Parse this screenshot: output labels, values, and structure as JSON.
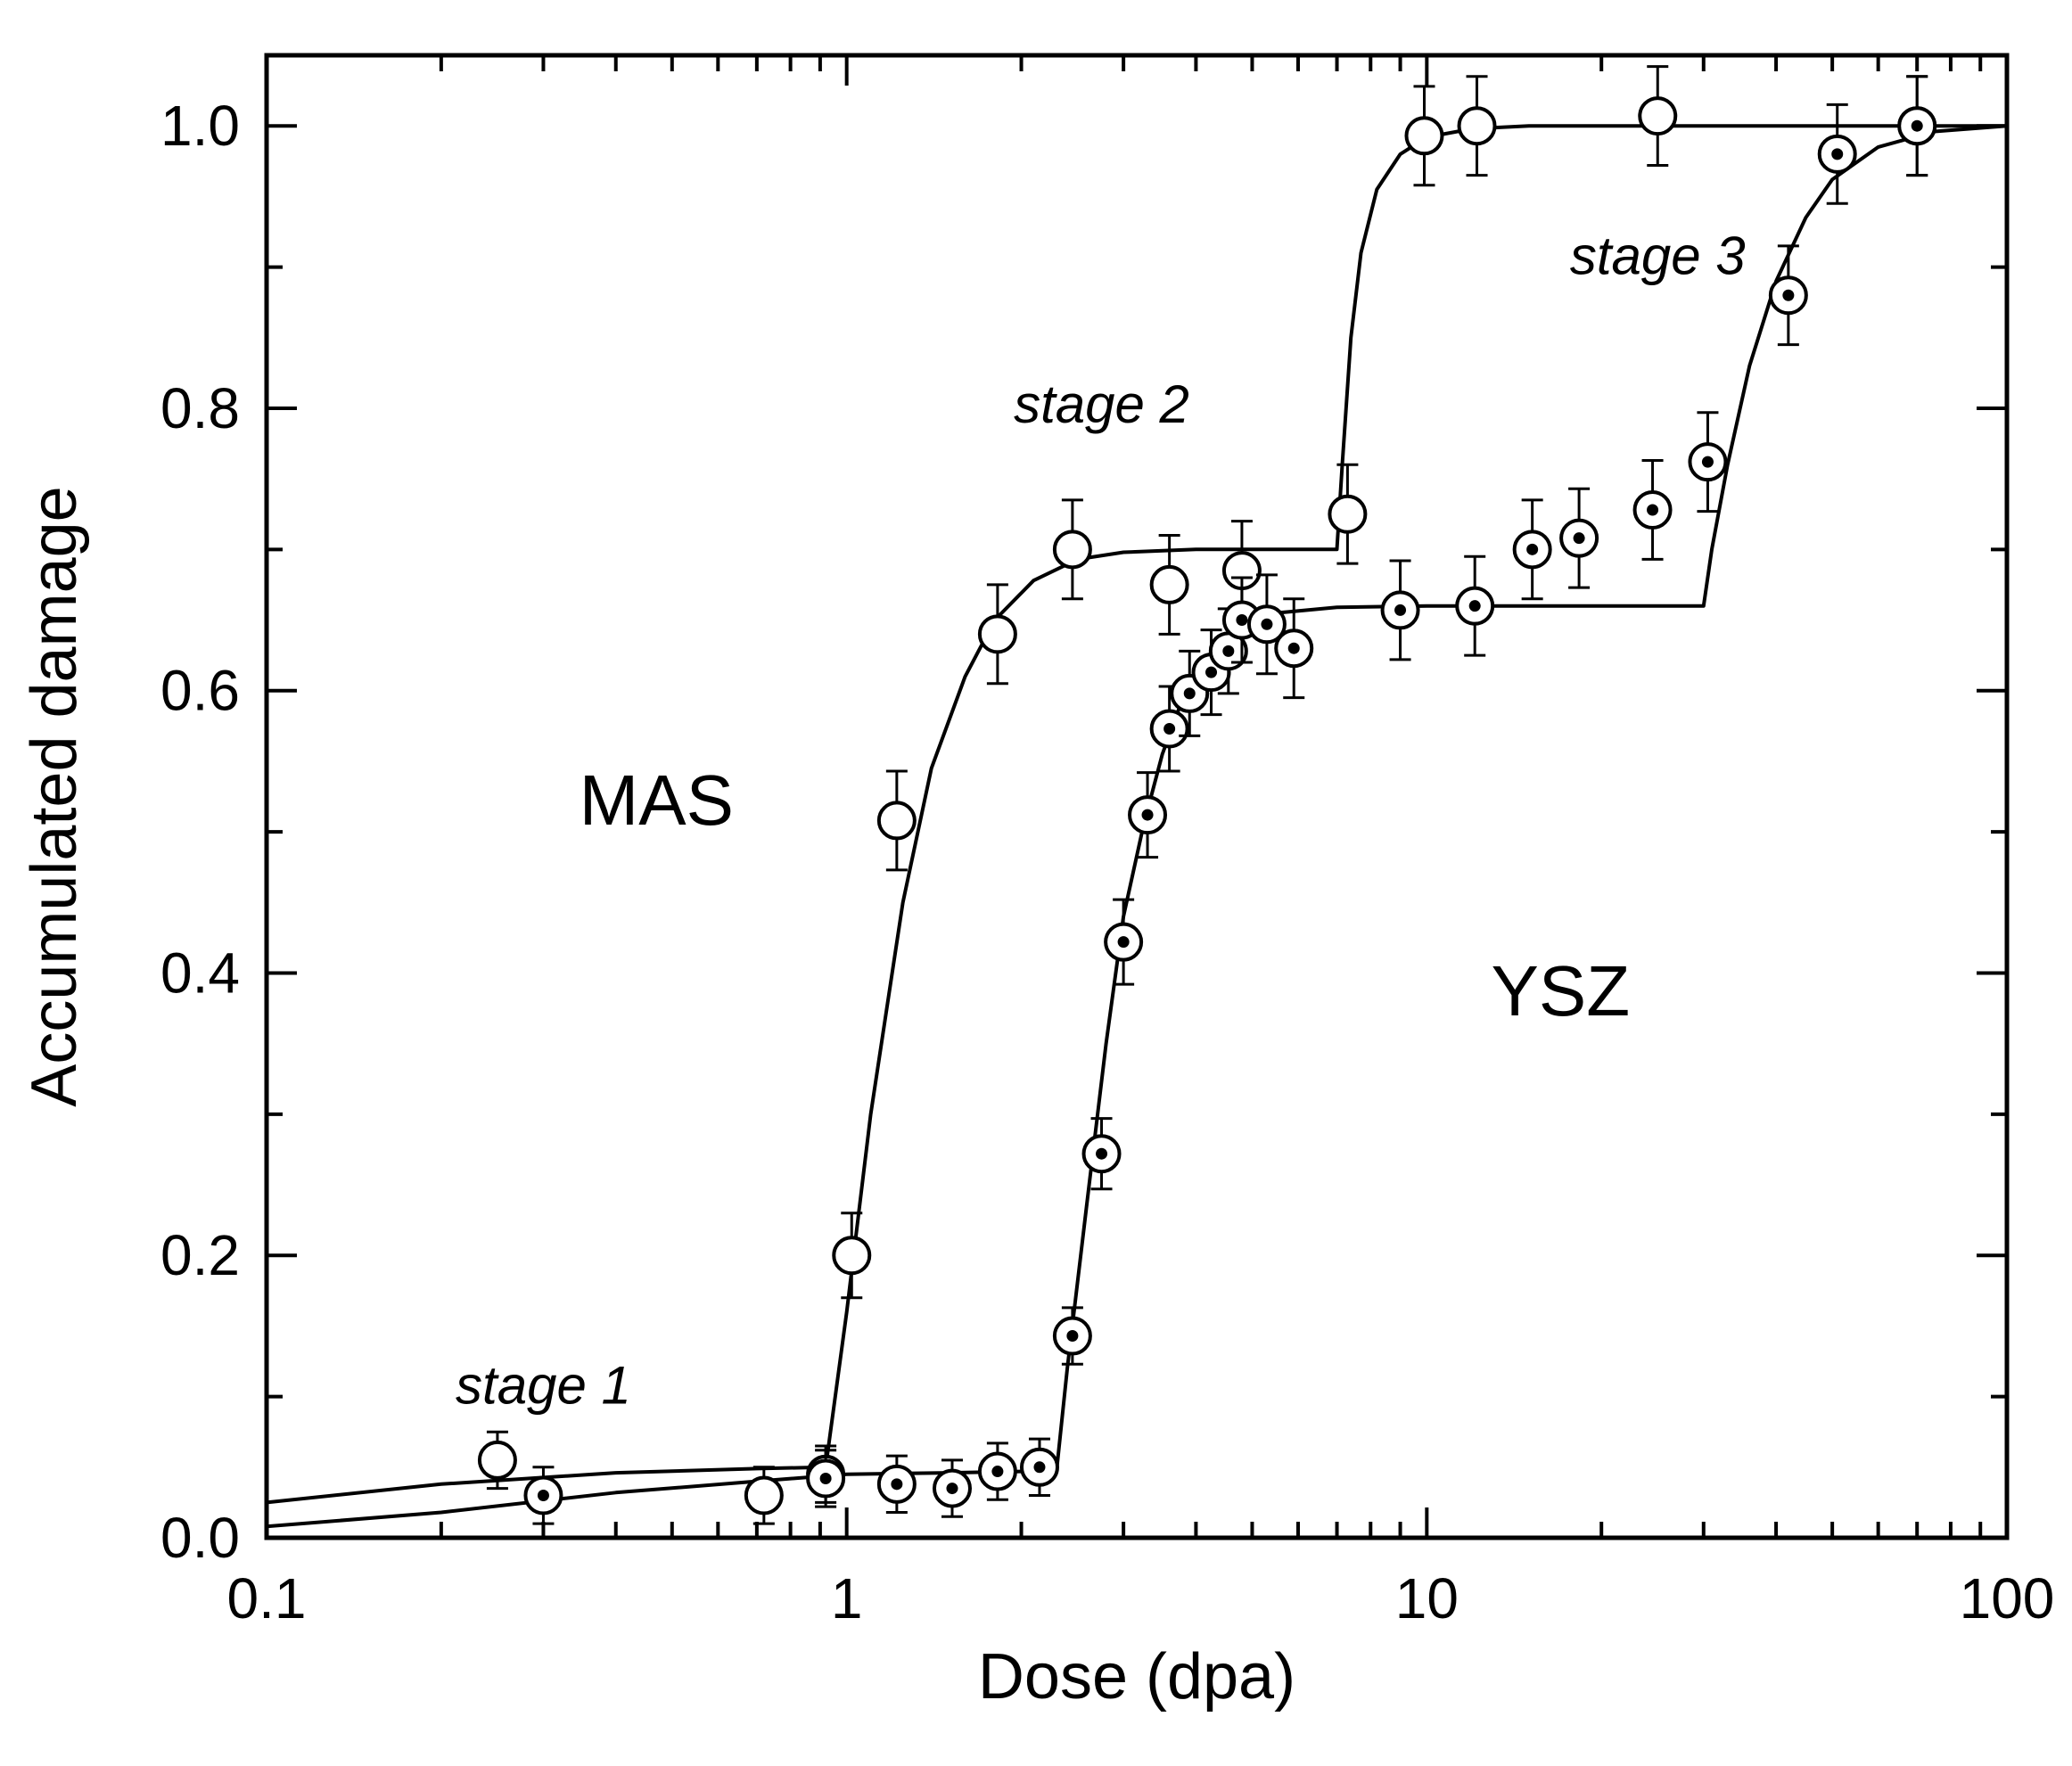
{
  "chart_data": {
    "type": "scatter",
    "xscale": "log",
    "xlim": [
      0.1,
      100
    ],
    "ylim": [
      0.0,
      1.05
    ],
    "xlabel": "Dose (dpa)",
    "ylabel": "Accumulated damage",
    "x_tick_labels": [
      "0.1",
      "1",
      "10",
      "100"
    ],
    "x_tick_values": [
      0.1,
      1,
      10,
      100
    ],
    "y_tick_labels": [
      "0.0",
      "0.2",
      "0.4",
      "0.6",
      "0.8",
      "1.0"
    ],
    "y_tick_values": [
      0.0,
      0.2,
      0.4,
      0.6,
      0.8,
      1.0
    ],
    "series_labels": {
      "mas": "MAS",
      "ysz": "YSZ"
    },
    "stage_labels": [
      "stage 1",
      "stage 2",
      "stage 3"
    ],
    "series": [
      {
        "name": "MAS",
        "marker": "open-circle",
        "x": [
          0.25,
          0.72,
          0.92,
          1.02,
          1.22,
          1.82,
          2.45,
          3.6,
          4.8,
          7.3,
          9.9,
          12.2,
          25.0,
          70.0
        ],
        "y": [
          0.055,
          0.03,
          0.045,
          0.2,
          0.508,
          0.64,
          0.7,
          0.675,
          0.685,
          0.725,
          0.993,
          1.0,
          1.007,
          1.0
        ],
        "err": [
          0.02,
          0.02,
          0.02,
          0.03,
          0.035,
          0.035,
          0.035,
          0.035,
          0.035,
          0.035,
          0.035,
          0.035,
          0.035,
          0.035
        ]
      },
      {
        "name": "YSZ",
        "marker": "dotted-circle",
        "x": [
          0.3,
          0.92,
          1.22,
          1.52,
          1.82,
          2.15,
          2.45,
          2.75,
          3.0,
          3.3,
          3.6,
          3.9,
          4.25,
          4.55,
          4.8,
          5.3,
          5.9,
          9.0,
          12.1,
          15.2,
          18.3,
          24.5,
          30.5,
          42.0,
          51.0,
          70.0
        ],
        "y": [
          0.03,
          0.042,
          0.038,
          0.035,
          0.047,
          0.05,
          0.143,
          0.272,
          0.422,
          0.512,
          0.573,
          0.598,
          0.613,
          0.628,
          0.65,
          0.647,
          0.63,
          0.657,
          0.66,
          0.7,
          0.708,
          0.728,
          0.762,
          0.88,
          0.98,
          1.0
        ],
        "err": [
          0.02,
          0.02,
          0.02,
          0.02,
          0.02,
          0.02,
          0.02,
          0.025,
          0.03,
          0.03,
          0.03,
          0.03,
          0.03,
          0.03,
          0.03,
          0.035,
          0.035,
          0.035,
          0.035,
          0.035,
          0.035,
          0.035,
          0.035,
          0.035,
          0.035,
          0.035
        ]
      }
    ],
    "fits": [
      {
        "name": "MAS fit",
        "x": [
          0.1,
          0.2,
          0.4,
          0.7,
          0.92,
          1.0,
          1.1,
          1.25,
          1.4,
          1.6,
          1.8,
          2.1,
          2.5,
          3.0,
          4.0,
          5.5,
          7.0,
          7.15,
          7.4,
          7.7,
          8.2,
          9.0,
          10.0,
          12.0,
          15.0,
          30.0,
          100.0
        ],
        "y": [
          0.025,
          0.038,
          0.046,
          0.049,
          0.05,
          0.16,
          0.3,
          0.45,
          0.545,
          0.61,
          0.65,
          0.678,
          0.693,
          0.698,
          0.7,
          0.7,
          0.7,
          0.76,
          0.85,
          0.91,
          0.955,
          0.98,
          0.992,
          0.998,
          1.0,
          1.0,
          1.0
        ]
      },
      {
        "name": "YSZ fit",
        "x": [
          0.1,
          0.2,
          0.4,
          0.7,
          1.0,
          1.5,
          2.0,
          2.3,
          2.4,
          2.6,
          2.8,
          3.0,
          3.25,
          3.5,
          3.8,
          4.2,
          4.8,
          5.5,
          7.0,
          10.0,
          20.0,
          30.0,
          31.0,
          33.0,
          36.0,
          40.0,
          45.0,
          50.0,
          60.0,
          75.0,
          100.0
        ],
        "y": [
          0.008,
          0.018,
          0.032,
          0.04,
          0.045,
          0.046,
          0.047,
          0.047,
          0.12,
          0.24,
          0.35,
          0.44,
          0.505,
          0.555,
          0.595,
          0.625,
          0.645,
          0.655,
          0.659,
          0.66,
          0.66,
          0.66,
          0.7,
          0.76,
          0.83,
          0.89,
          0.935,
          0.962,
          0.985,
          0.996,
          1.0
        ]
      }
    ],
    "annotations": [
      {
        "text_ref": "stage 1",
        "x": 0.3,
        "y": 0.095
      },
      {
        "text_ref": "stage 2",
        "x": 2.75,
        "y": 0.79
      },
      {
        "text_ref": "stage 3",
        "x": 25.0,
        "y": 0.895
      },
      {
        "text_ref": "MAS",
        "x": 0.47,
        "y": 0.505
      },
      {
        "text_ref": "YSZ",
        "x": 17.0,
        "y": 0.37
      }
    ]
  }
}
